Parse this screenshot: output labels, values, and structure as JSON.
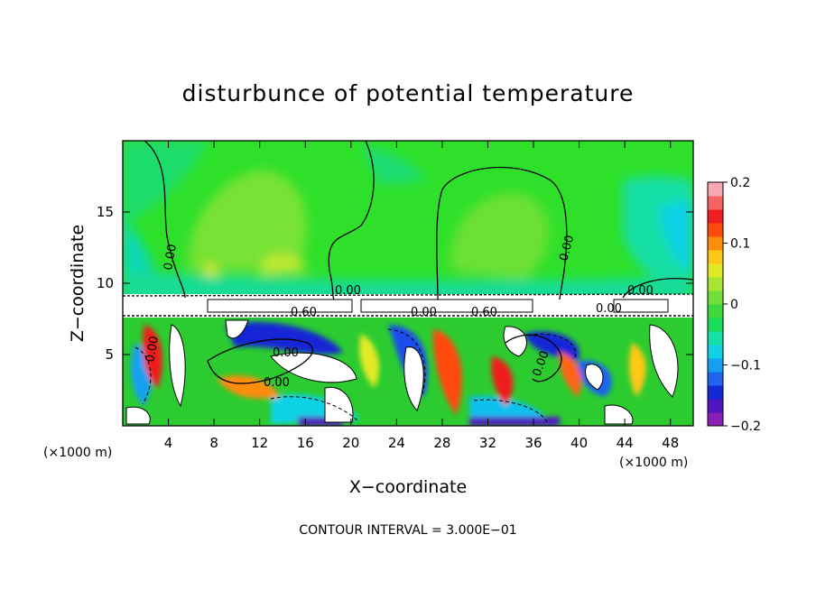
{
  "chart_data": {
    "type": "heatmap",
    "title": "disturbunce of potential temperature",
    "xlabel": "X−coordinate",
    "ylabel": "Z−coordinate",
    "x_unit": "(×1000 m)",
    "z_unit": "(×1000 m)",
    "xlim": [
      0,
      50
    ],
    "ylim": [
      0,
      20
    ],
    "x_ticks": [
      "4",
      "8",
      "12",
      "16",
      "20",
      "24",
      "28",
      "32",
      "36",
      "40",
      "44",
      "48"
    ],
    "y_ticks": [
      "5",
      "10",
      "15"
    ],
    "colorbar": {
      "range": [
        -0.2,
        0.2
      ],
      "ticks": [
        "0.2",
        "0.1",
        "0",
        "−0.1",
        "−0.2"
      ],
      "colors": [
        "#8a1fb8",
        "#5014c0",
        "#1428d6",
        "#1e64ee",
        "#14a0f0",
        "#10d2e6",
        "#14e0a8",
        "#18dc5a",
        "#3cd83c",
        "#6ee038",
        "#a8e634",
        "#e2ea26",
        "#ffc814",
        "#ff8c0a",
        "#ff4a0a",
        "#f01e1e",
        "#f46464",
        "#f8a8b0"
      ]
    },
    "contour_labels": [
      "0.00",
      "0.00",
      "0.00",
      "0.00",
      "0.00",
      "0.60",
      "0.00",
      "0.60",
      "0.00",
      "0.00",
      "0.00",
      "0.00"
    ],
    "contour_interval_text": "CONTOUR INTERVAL =  3.000E−01"
  }
}
